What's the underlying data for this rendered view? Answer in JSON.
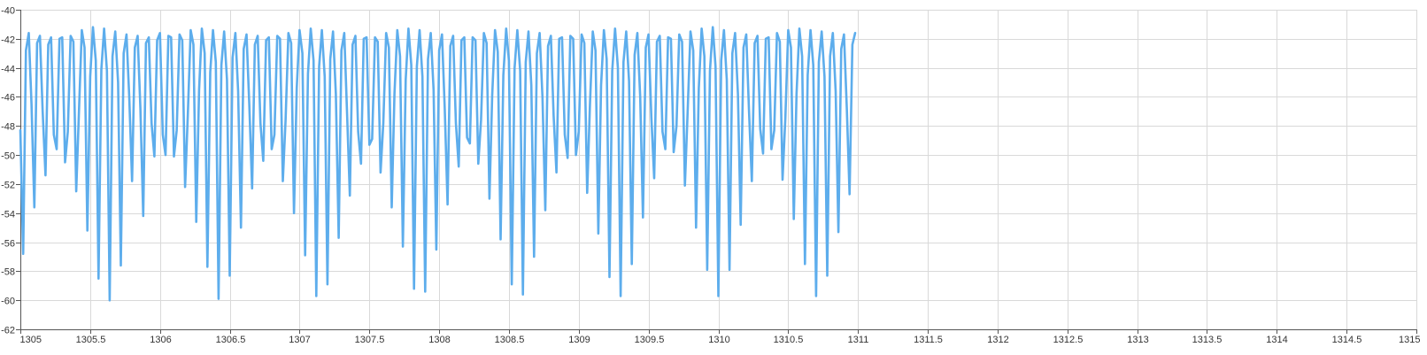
{
  "chart_data": {
    "type": "line",
    "title": "",
    "xlabel": "",
    "ylabel": "",
    "xlim": [
      1305,
      1315
    ],
    "ylim": [
      -62,
      -40
    ],
    "x_ticks": [
      1305,
      1305.5,
      1306,
      1306.5,
      1307,
      1307.5,
      1308,
      1308.5,
      1309,
      1309.5,
      1310,
      1310.5,
      1311,
      1311.5,
      1312,
      1312.5,
      1313,
      1313.5,
      1314,
      1314.5,
      1315
    ],
    "x_tick_labels": [
      "1305",
      "1305.5",
      "1306",
      "1306.5",
      "1307",
      "1307.5",
      "1308",
      "1308.5",
      "1309",
      "1309.5",
      "1310",
      "1310.5",
      "1311",
      "1311.5",
      "1312",
      "1312.5",
      "1313",
      "1313.5",
      "1314",
      "1314.5",
      "1315"
    ],
    "y_ticks": [
      -62,
      -60,
      -58,
      -56,
      -54,
      -52,
      -50,
      -48,
      -46,
      -44,
      -42,
      -40
    ],
    "y_tick_labels": [
      "-62",
      "-60",
      "-58",
      "-56",
      "-54",
      "-52",
      "-50",
      "-48",
      "-46",
      "-44",
      "-42",
      "-40"
    ],
    "grid": true,
    "legend": "none",
    "series": [
      {
        "color": "#5DADEC",
        "x_start": 1305,
        "x_step": 0.02,
        "values": [
          -48.3,
          -56.8,
          -42.8,
          -41.6,
          -46.5,
          -53.6,
          -42.3,
          -41.8,
          -47.0,
          -51.4,
          -42.4,
          -41.9,
          -48.6,
          -49.6,
          -42.0,
          -41.9,
          -50.5,
          -48.4,
          -41.8,
          -42.2,
          -52.5,
          -47.0,
          -41.4,
          -42.6,
          -55.2,
          -44.6,
          -41.2,
          -43.5,
          -58.5,
          -44.1,
          -41.3,
          -44.2,
          -60.0,
          -43.2,
          -41.5,
          -45.0,
          -57.6,
          -43.0,
          -41.7,
          -46.0,
          -51.8,
          -42.6,
          -41.8,
          -46.8,
          -54.2,
          -42.3,
          -41.9,
          -47.8,
          -50.1,
          -42.1,
          -41.6,
          -48.6,
          -50.0,
          -41.8,
          -41.9,
          -50.1,
          -48.3,
          -41.7,
          -42.1,
          -52.2,
          -47.2,
          -41.4,
          -42.4,
          -54.6,
          -45.5,
          -41.3,
          -43.0,
          -57.7,
          -44.3,
          -41.4,
          -43.6,
          -59.9,
          -43.8,
          -41.5,
          -44.8,
          -58.3,
          -43.3,
          -41.6,
          -45.6,
          -55.0,
          -42.7,
          -41.7,
          -46.5,
          -52.3,
          -42.4,
          -41.8,
          -47.8,
          -50.4,
          -42.1,
          -41.9,
          -49.6,
          -48.6,
          -41.8,
          -42.0,
          -51.8,
          -47.6,
          -41.6,
          -42.3,
          -54.0,
          -45.4,
          -41.4,
          -43.0,
          -56.9,
          -44.4,
          -41.3,
          -43.5,
          -59.7,
          -43.9,
          -41.4,
          -44.6,
          -58.9,
          -43.4,
          -41.5,
          -45.8,
          -55.7,
          -42.8,
          -41.6,
          -47.0,
          -52.8,
          -42.4,
          -41.8,
          -48.4,
          -50.6,
          -42.0,
          -41.9,
          -49.3,
          -48.9,
          -41.9,
          -42.2,
          -51.2,
          -47.8,
          -41.6,
          -42.6,
          -53.6,
          -45.8,
          -41.4,
          -43.2,
          -56.3,
          -44.8,
          -41.3,
          -43.8,
          -59.2,
          -43.9,
          -41.4,
          -44.6,
          -59.4,
          -43.4,
          -41.6,
          -45.5,
          -56.5,
          -42.8,
          -41.7,
          -46.8,
          -53.4,
          -42.5,
          -41.8,
          -47.8,
          -50.8,
          -42.1,
          -41.9,
          -48.8,
          -49.2,
          -41.9,
          -42.1,
          -50.6,
          -47.6,
          -41.6,
          -42.3,
          -53.0,
          -45.9,
          -41.4,
          -42.9,
          -55.8,
          -44.5,
          -41.3,
          -43.5,
          -58.9,
          -44.0,
          -41.4,
          -44.2,
          -59.6,
          -43.6,
          -41.5,
          -45.2,
          -57.0,
          -43.0,
          -41.6,
          -46.0,
          -53.8,
          -42.5,
          -41.8,
          -47.3,
          -51.2,
          -42.0,
          -41.9,
          -48.6,
          -50.2,
          -41.8,
          -42.0,
          -50.0,
          -48.4,
          -41.7,
          -42.3,
          -52.6,
          -46.6,
          -41.5,
          -42.8,
          -55.4,
          -45.2,
          -41.4,
          -43.4,
          -58.4,
          -44.2,
          -41.3,
          -44.0,
          -59.7,
          -43.6,
          -41.5,
          -44.9,
          -57.5,
          -43.1,
          -41.6,
          -46.0,
          -54.3,
          -42.6,
          -41.7,
          -47.4,
          -51.6,
          -42.2,
          -41.8,
          -48.4,
          -49.6,
          -41.9,
          -42.0,
          -49.8,
          -48.0,
          -41.7,
          -42.2,
          -52.1,
          -47.0,
          -41.5,
          -42.8,
          -55.0,
          -45.4,
          -41.3,
          -43.2,
          -57.9,
          -44.2,
          -41.2,
          -43.9,
          -59.7,
          -43.5,
          -41.4,
          -44.8,
          -57.9,
          -43.0,
          -41.6,
          -45.8,
          -54.8,
          -42.6,
          -41.7,
          -47.1,
          -51.8,
          -42.3,
          -41.8,
          -48.2,
          -49.9,
          -42.0,
          -41.9,
          -49.6,
          -48.3,
          -41.6,
          -42.2,
          -51.7,
          -47.4,
          -41.4,
          -42.6,
          -54.4,
          -45.8,
          -41.3,
          -43.2,
          -57.5,
          -44.5,
          -41.4,
          -43.8,
          -59.7,
          -43.6,
          -41.5,
          -44.6,
          -58.3,
          -43.2,
          -41.6,
          -45.6,
          -55.3,
          -42.7,
          -41.7,
          -46.8,
          -52.7,
          -42.4,
          -41.6
        ]
      }
    ]
  }
}
